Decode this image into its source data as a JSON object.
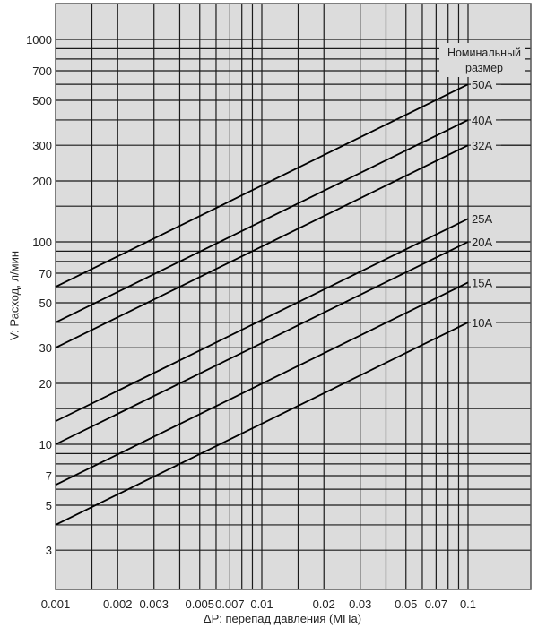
{
  "chart_data": {
    "type": "line",
    "title": "",
    "xlabel": "ΔP: перепад давления (МПа)",
    "ylabel": "V: Расход, л/мин",
    "xscale": "log",
    "yscale": "log",
    "xlim": [
      0.001,
      0.3
    ],
    "ylim": [
      2,
      1500
    ],
    "grid": true,
    "legend_title": [
      "Номинальный",
      "размер"
    ],
    "legend_position": "right, inline labels at line ends",
    "x_ticks": [
      0.001,
      0.002,
      0.003,
      0.005,
      0.007,
      0.01,
      0.02,
      0.03,
      0.05,
      0.07,
      0.1
    ],
    "x_tick_labels": [
      "0.001",
      "0.002",
      "0.003",
      "0.005",
      "0.007",
      "0.01",
      "0.02",
      "0.03",
      "0.05",
      "0.07",
      "0.1"
    ],
    "x_gridlines": [
      0.0015,
      0.002,
      0.003,
      0.004,
      0.005,
      0.006,
      0.007,
      0.008,
      0.009,
      0.01,
      0.015,
      0.02,
      0.03,
      0.04,
      0.05,
      0.06,
      0.07,
      0.08,
      0.09,
      0.1
    ],
    "y_ticks": [
      3,
      5,
      7,
      10,
      20,
      30,
      50,
      70,
      100,
      200,
      300,
      500,
      700,
      1000
    ],
    "y_tick_labels": [
      "3",
      "5",
      "7",
      "10",
      "20",
      "30",
      "50",
      "70",
      "100",
      "200",
      "300",
      "500",
      "700",
      "1000"
    ],
    "y_gridlines": [
      3,
      4,
      5,
      6,
      7,
      8,
      9,
      10,
      15,
      20,
      30,
      40,
      50,
      60,
      70,
      80,
      90,
      100,
      150,
      200,
      300,
      400,
      500,
      600,
      700,
      800,
      900,
      1000
    ],
    "x": [
      0.001,
      0.1
    ],
    "series": [
      {
        "name": "50A",
        "values": [
          60,
          600
        ]
      },
      {
        "name": "40A",
        "values": [
          40,
          400
        ]
      },
      {
        "name": "32A",
        "values": [
          30,
          300
        ]
      },
      {
        "name": "25A",
        "values": [
          13,
          130
        ]
      },
      {
        "name": "20A",
        "values": [
          10,
          100
        ]
      },
      {
        "name": "15A",
        "values": [
          6.3,
          63
        ]
      },
      {
        "name": "10A",
        "values": [
          4,
          40
        ]
      }
    ],
    "series_label_tick": {
      "50A": true,
      "40A": true,
      "32A": true,
      "25A": false,
      "20A": false,
      "15A": false,
      "10A": true
    }
  },
  "colors": {
    "plot_background": "#dcdcdc",
    "grid": "#1a1a1a",
    "line": "#000000",
    "text": "#222222"
  }
}
